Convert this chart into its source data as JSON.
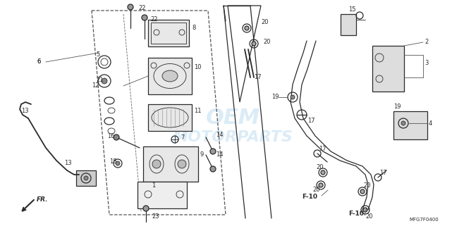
{
  "bg_color": "#ffffff",
  "line_color": "#2a2a2a",
  "wm_color": "#cde4f5",
  "wm_text1": "OEM",
  "wm_text2": "MOTORPARTS",
  "code": "MFG7F0400",
  "figsize": [
    6.41,
    3.21
  ],
  "dpi": 100
}
